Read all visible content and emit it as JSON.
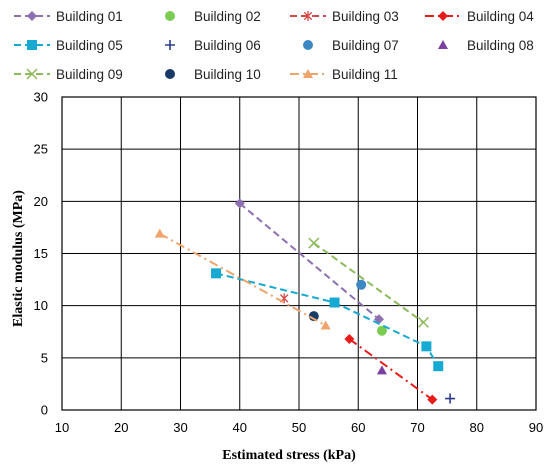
{
  "chart_data": {
    "type": "scatter",
    "title": "",
    "xlabel": "Estimated stress (kPa)",
    "ylabel": "Elastic modulus (MPa)",
    "xlim": [
      10,
      90
    ],
    "ylim": [
      0,
      30
    ],
    "xticks": [
      10,
      20,
      30,
      40,
      50,
      60,
      70,
      80,
      90
    ],
    "yticks": [
      0,
      5,
      10,
      15,
      20,
      25,
      30
    ],
    "grid": true,
    "legend_position": "top",
    "series": [
      {
        "name": "Building 01",
        "marker": "diamond",
        "color": "#8e6fb1",
        "line": "dashed",
        "points": [
          [
            40,
            19.8
          ],
          [
            63.5,
            8.7
          ]
        ]
      },
      {
        "name": "Building 02",
        "marker": "circle",
        "color": "#7ccc52",
        "line": "none",
        "points": [
          [
            64,
            7.6
          ]
        ]
      },
      {
        "name": "Building 03",
        "marker": "asterisk",
        "color": "#d64949",
        "line": "dashed",
        "points": [
          [
            47.5,
            10.7
          ]
        ]
      },
      {
        "name": "Building 04",
        "marker": "diamond",
        "color": "#e81b1b",
        "line": "dashdot",
        "points": [
          [
            58.5,
            6.8
          ],
          [
            72.5,
            1.0
          ]
        ]
      },
      {
        "name": "Building 05",
        "marker": "square",
        "color": "#16a9d1",
        "line": "dashed",
        "points": [
          [
            36,
            13.1
          ],
          [
            56,
            10.3
          ],
          [
            71.5,
            6.1
          ],
          [
            73.5,
            4.2
          ]
        ]
      },
      {
        "name": "Building 06",
        "marker": "plus",
        "color": "#2a3d8f",
        "line": "none",
        "points": [
          [
            75.5,
            1.1
          ]
        ]
      },
      {
        "name": "Building 07",
        "marker": "circle",
        "color": "#3c87c4",
        "line": "none",
        "points": [
          [
            60.5,
            12.0
          ]
        ]
      },
      {
        "name": "Building 08",
        "marker": "triangle",
        "color": "#7b3fa1",
        "line": "none",
        "points": [
          [
            64,
            3.8
          ]
        ]
      },
      {
        "name": "Building 09",
        "marker": "x",
        "color": "#8dbb5a",
        "line": "dashed",
        "points": [
          [
            52.5,
            16.0
          ],
          [
            71,
            8.4
          ]
        ]
      },
      {
        "name": "Building 10",
        "marker": "circle",
        "color": "#173a66",
        "line": "none",
        "points": [
          [
            52.5,
            9.0
          ]
        ]
      },
      {
        "name": "Building 11",
        "marker": "triangle",
        "color": "#f0a46c",
        "line": "dashdot",
        "points": [
          [
            26.5,
            16.9
          ],
          [
            54.5,
            8.1
          ]
        ]
      }
    ]
  }
}
